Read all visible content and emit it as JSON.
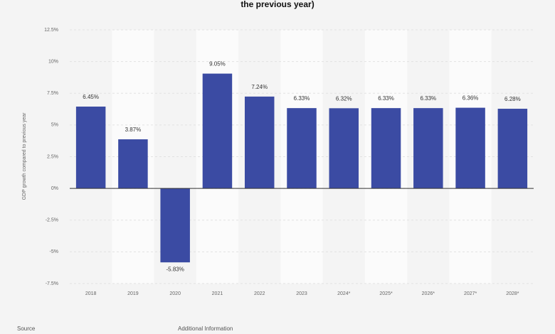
{
  "chart_data": {
    "type": "bar",
    "title": "the previous year)",
    "y_label": "GDP growth compared to previous year",
    "categories": [
      "2018",
      "2019",
      "2020",
      "2021",
      "2022",
      "2023",
      "2024*",
      "2025*",
      "2026*",
      "2027*",
      "2028*"
    ],
    "values": [
      6.45,
      3.87,
      -5.83,
      9.05,
      7.24,
      6.33,
      6.32,
      6.33,
      6.33,
      6.36,
      6.28
    ],
    "value_labels": [
      "6.45%",
      "3.87%",
      "-5.83%",
      "9.05%",
      "7.24%",
      "6.33%",
      "6.32%",
      "6.33%",
      "6.33%",
      "6.36%",
      "6.28%"
    ],
    "color": "#3b4ba3",
    "ylim": [
      -7.5,
      12.5
    ],
    "yticks": [
      {
        "value": -7.5,
        "label": "-7.5%"
      },
      {
        "value": -5,
        "label": "-5%"
      },
      {
        "value": -2.5,
        "label": "-2.5%"
      },
      {
        "value": 0,
        "label": "0%"
      },
      {
        "value": 2.5,
        "label": "2.5%"
      },
      {
        "value": 5,
        "label": "5%"
      },
      {
        "value": 7.5,
        "label": "7.5%"
      },
      {
        "value": 10,
        "label": "10%"
      },
      {
        "value": 12.5,
        "label": "12.5%"
      }
    ],
    "grid": true,
    "footer": [
      "Source",
      "Additional Information"
    ]
  }
}
